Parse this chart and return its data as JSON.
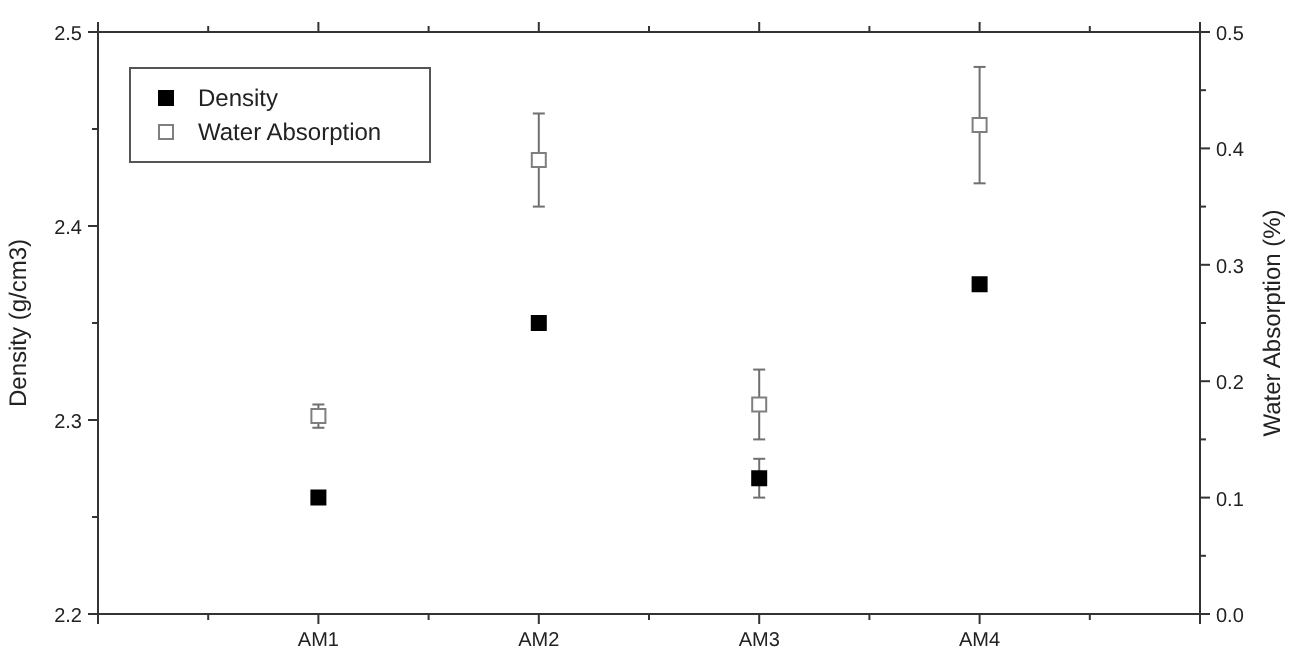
{
  "chart_data": {
    "type": "scatter",
    "xlabel": null,
    "ylabel": "Density (g/cm3)",
    "y2label": "Water Absorption (%)",
    "categories": [
      "AM1",
      "AM2",
      "AM3",
      "AM4"
    ],
    "series": [
      {
        "name": "Density",
        "color": "#000000",
        "values": [
          2.26,
          2.35,
          2.27,
          2.37
        ],
        "errors": [
          null,
          null,
          0.01,
          null
        ]
      },
      {
        "name": "Water Absorption",
        "color": "#7f7f7f",
        "axis": "y2",
        "values": [
          0.17,
          0.39,
          0.18,
          0.42
        ],
        "errors": [
          0.01,
          0.04,
          0.03,
          0.05
        ]
      }
    ],
    "ylim": [
      2.2,
      2.5
    ],
    "yticks": [
      2.2,
      2.3,
      2.4,
      2.5
    ],
    "y2lim": [
      0,
      0.5
    ],
    "y2ticks": [
      {
        "value": 0,
        "label": "0.0"
      },
      0.1,
      0.2,
      0.3,
      0.4,
      0.5
    ],
    "marker": "square",
    "legend": "top left"
  }
}
